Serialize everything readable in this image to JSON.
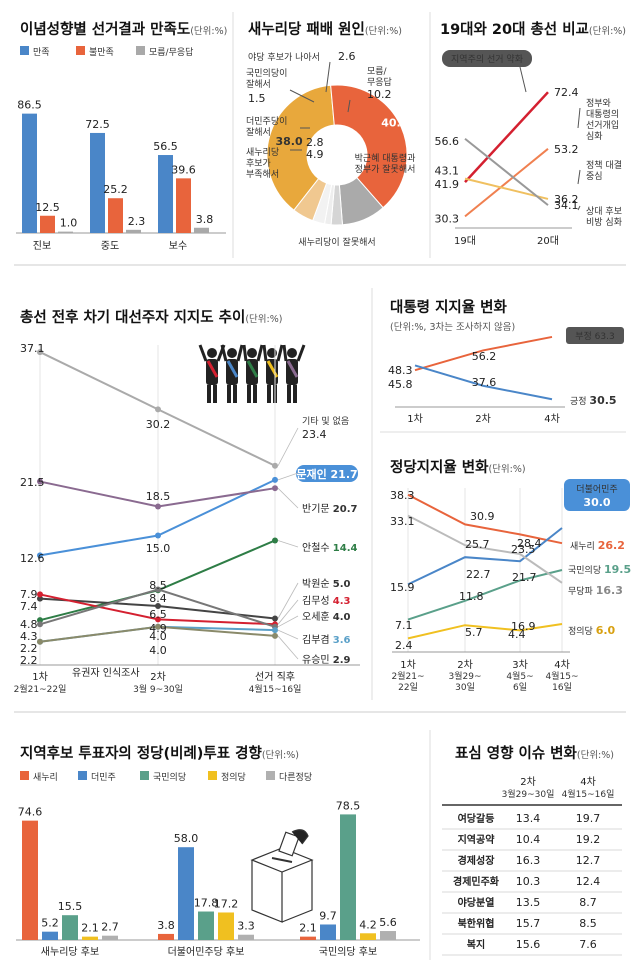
{
  "satisfaction": {
    "title": "이념성향별 선거결과 만족도",
    "unit": "(단위:%)",
    "legend": [
      "만족",
      "불만족",
      "모름/무응답"
    ],
    "colors": [
      "#4a86c8",
      "#e8643c",
      "#a9a9a9"
    ]
  },
  "defeat": {
    "title": "새누리당 패배 원인",
    "unit": "(단위:%)",
    "labels": [
      [
        "새누리당이 잘못해서"
      ],
      [
        "박근혜 대통령과",
        "정부가 잘못해서"
      ],
      [
        "모름/",
        "무응답"
      ],
      [
        "야당 후보가 나아서"
      ],
      [
        "국민의당이",
        "잘해서"
      ],
      [
        "더민주당이",
        "잘해서"
      ],
      [
        "새누리당",
        "후보가",
        "부족해서"
      ]
    ],
    "colors": [
      "#e8a83c",
      "#e8643c",
      "#aaaaaa",
      "#d5d5d5",
      "#eeeeee",
      "#f2f2f2",
      "#f0c890"
    ]
  },
  "election": {
    "title": "19대와 20대 총선 비교",
    "unit": "(단위:%)",
    "callout": "지역주의 선거 약화",
    "series_labels": [
      [
        "정부와",
        "대통령의",
        "선거개입",
        "심화"
      ],
      [
        "정책 대결",
        "중심"
      ],
      [
        "상대 후보",
        "비방 심화"
      ]
    ],
    "colors": [
      "#d42030",
      "#f08050",
      "#f0c060",
      "#999999"
    ]
  },
  "presidential": {
    "title": "총선 전후 차기 대선주자 지지도 추이",
    "unit": "(단위:%)",
    "period_note": "유권자 인식조사",
    "x_labels": [
      [
        "1차",
        "2월21~22일"
      ],
      [
        "2차",
        "3월 9~30일"
      ],
      [
        "선거 직후",
        "4월15~16일"
      ]
    ],
    "series_names": [
      "기타 및 없음",
      "문재인",
      "반기문",
      "안철수",
      "박원순",
      "김무성",
      "오세훈",
      "김부겸",
      "유승민"
    ],
    "colors": [
      "#aaaaaa",
      "#4a90d8",
      "#8a6a90",
      "#2e7d46",
      "#444444",
      "#d42030",
      "#777777",
      "#5aa0c8",
      "#8a8a6a"
    ]
  },
  "approval": {
    "title": "대통령 지지율 변화",
    "unit": "(단위:%, 3차는 조사하지 않음)",
    "x_labels": [
      "1차",
      "2차",
      "4차"
    ],
    "series_names": [
      "부정",
      "긍정"
    ],
    "colors": [
      "#e8643c",
      "#4a86c8"
    ]
  },
  "party": {
    "title": "정당지지율 변화",
    "unit": "(단위:%)",
    "x_labels": [
      [
        "1차",
        "2월21~",
        "22일"
      ],
      [
        "2차",
        "3월29~",
        "30일"
      ],
      [
        "3차",
        "4월5~",
        "6일"
      ],
      [
        "4차",
        "4월15~",
        "16일"
      ]
    ],
    "series_names": [
      "새누리",
      "더불어민주",
      "국민의당",
      "무당파",
      "정의당"
    ],
    "colors": [
      "#e8643c",
      "#4a86c8",
      "#5aa08a",
      "#bbbbbb",
      "#f0c020"
    ]
  },
  "local": {
    "title": "지역후보 투표자의 정당(비례)투표 경향",
    "unit": "(단위:%)",
    "legend": [
      "새누리",
      "더민주",
      "국민의당",
      "정의당",
      "다른정당"
    ],
    "colors": [
      "#e8643c",
      "#4a86c8",
      "#5aa08a",
      "#f0c020",
      "#b0b0b0"
    ],
    "groups": [
      "새누리당 후보",
      "더불어민주당 후보",
      "국민의당 후보"
    ]
  },
  "issues": {
    "title": "표심 영향 이슈 변화",
    "unit": "(단위:%)",
    "col_headers": [
      [
        "2차",
        "3월29~30일"
      ],
      [
        "4차",
        "4월15~16일"
      ]
    ]
  },
  "chart_data": [
    {
      "type": "bar",
      "title": "이념성향별 선거결과 만족도",
      "categories": [
        "진보",
        "중도",
        "보수"
      ],
      "series": [
        {
          "name": "만족",
          "values": [
            86.5,
            72.5,
            56.5
          ]
        },
        {
          "name": "불만족",
          "values": [
            12.5,
            25.2,
            39.6
          ]
        },
        {
          "name": "모름/무응답",
          "values": [
            1.0,
            2.3,
            3.8
          ]
        }
      ]
    },
    {
      "type": "pie",
      "title": "새누리당 패배 원인",
      "slices": [
        {
          "name": "새누리당이 잘못해서",
          "value": 38.0
        },
        {
          "name": "박근혜 대통령과 정부가 잘못해서",
          "value": 40.0
        },
        {
          "name": "모름/무응답",
          "value": 10.2
        },
        {
          "name": "야당 후보가 나아서",
          "value": 2.6
        },
        {
          "name": "국민의당이 잘해서",
          "value": 1.5
        },
        {
          "name": "더민주당이 잘해서",
          "value": 2.8
        },
        {
          "name": "새누리당 후보가 부족해서",
          "value": 4.9
        }
      ]
    },
    {
      "type": "line",
      "title": "19대와 20대 총선 비교",
      "categories": [
        "19대",
        "20대"
      ],
      "ylim": [
        25,
        78
      ],
      "series": [
        {
          "name": "지역주의 선거 약화",
          "values": [
            41.9,
            72.4
          ]
        },
        {
          "name": "정부와 대통령의 선거개입 심화",
          "values": [
            30.3,
            53.2
          ]
        },
        {
          "name": "정책 대결 중심",
          "values": [
            43.1,
            36.2
          ]
        },
        {
          "name": "상대 후보 비방 심화",
          "values": [
            56.6,
            34.1
          ]
        }
      ]
    },
    {
      "type": "line",
      "title": "총선 전후 차기 대선주자 지지도 추이",
      "categories": [
        "1차",
        "2차",
        "선거 직후"
      ],
      "ylim": [
        0,
        40
      ],
      "series": [
        {
          "name": "기타 및 없음",
          "values": [
            37.1,
            30.2,
            23.4
          ]
        },
        {
          "name": "문재인",
          "values": [
            12.6,
            15.0,
            21.7
          ]
        },
        {
          "name": "반기문",
          "values": [
            21.5,
            18.5,
            20.7
          ]
        },
        {
          "name": "안철수",
          "values": [
            4.8,
            8.4,
            14.4
          ]
        },
        {
          "name": "박원순",
          "values": [
            7.4,
            6.5,
            5.0
          ]
        },
        {
          "name": "김무성",
          "values": [
            7.9,
            4.9,
            4.3
          ]
        },
        {
          "name": "오세훈",
          "values": [
            4.3,
            8.5,
            4.0
          ]
        },
        {
          "name": "김부겸",
          "values": [
            2.2,
            4.0,
            3.6
          ]
        },
        {
          "name": "유승민",
          "values": [
            2.2,
            4.0,
            2.9
          ]
        }
      ]
    },
    {
      "type": "line",
      "title": "대통령 지지율 변화",
      "categories": [
        "1차",
        "2차",
        "4차"
      ],
      "ylim": [
        28,
        66
      ],
      "series": [
        {
          "name": "부정",
          "values": [
            45.8,
            56.2,
            63.3
          ]
        },
        {
          "name": "긍정",
          "values": [
            48.3,
            37.6,
            30.5
          ]
        }
      ]
    },
    {
      "type": "line",
      "title": "정당지지율 변화",
      "categories": [
        "1차",
        "2차",
        "3차",
        "4차"
      ],
      "ylim": [
        0,
        42
      ],
      "series": [
        {
          "name": "새누리",
          "values": [
            38.3,
            30.9,
            28.4,
            26.2
          ]
        },
        {
          "name": "더불어민주",
          "values": [
            15.9,
            22.7,
            21.7,
            30.0
          ]
        },
        {
          "name": "국민의당",
          "values": [
            7.1,
            11.8,
            16.9,
            19.5
          ]
        },
        {
          "name": "무당파",
          "values": [
            33.1,
            25.7,
            23.5,
            16.3
          ]
        },
        {
          "name": "정의당",
          "values": [
            2.4,
            5.7,
            4.4,
            6.0
          ]
        }
      ]
    },
    {
      "type": "bar",
      "title": "지역후보 투표자의 정당(비례)투표 경향",
      "categories": [
        "새누리당 후보",
        "더불어민주당 후보",
        "국민의당 후보"
      ],
      "series": [
        {
          "name": "새누리",
          "values": [
            74.6,
            3.8,
            2.1
          ]
        },
        {
          "name": "더민주",
          "values": [
            5.2,
            58.0,
            9.7
          ]
        },
        {
          "name": "국민의당",
          "values": [
            15.5,
            17.8,
            78.5
          ]
        },
        {
          "name": "정의당",
          "values": [
            2.1,
            17.2,
            4.2
          ]
        },
        {
          "name": "다른정당",
          "values": [
            2.7,
            3.3,
            5.6
          ]
        }
      ]
    },
    {
      "type": "table",
      "title": "표심 영향 이슈 변화",
      "columns": [
        "2차",
        "4차"
      ],
      "rows": [
        {
          "name": "여당갈등",
          "values": [
            13.4,
            19.7
          ]
        },
        {
          "name": "지역공약",
          "values": [
            10.4,
            19.2
          ]
        },
        {
          "name": "경제성장",
          "values": [
            16.3,
            12.7
          ]
        },
        {
          "name": "경제민주화",
          "values": [
            10.3,
            12.4
          ]
        },
        {
          "name": "야당분열",
          "values": [
            13.5,
            8.7
          ]
        },
        {
          "name": "북한위협",
          "values": [
            15.7,
            8.5
          ]
        },
        {
          "name": "복지",
          "values": [
            15.6,
            7.6
          ]
        }
      ]
    }
  ]
}
